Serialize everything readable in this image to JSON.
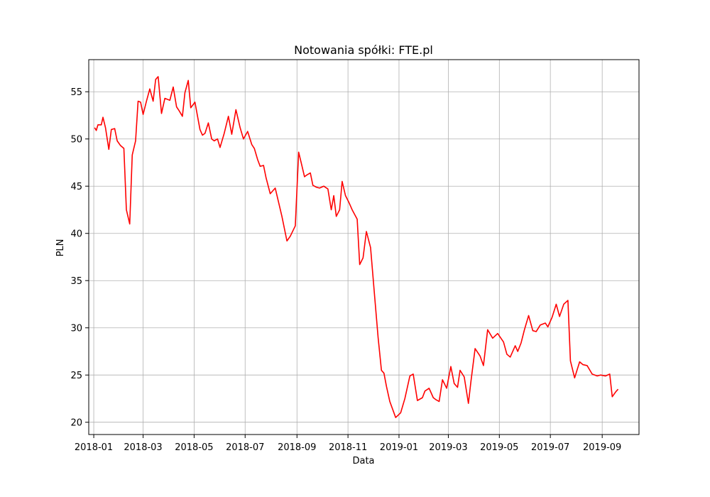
{
  "chart_data": {
    "type": "line",
    "title": "Notowania spółki: FTE.pl",
    "xlabel": "Data",
    "ylabel": "PLN",
    "grid": true,
    "line_color": "#ff0000",
    "xlim": [
      "2017-12-26",
      "2019-10-15"
    ],
    "ylim": [
      18.7,
      58.4
    ],
    "x_ticks": [
      "2018-01",
      "2018-03",
      "2018-05",
      "2018-07",
      "2018-09",
      "2018-11",
      "2019-01",
      "2019-03",
      "2019-05",
      "2019-07",
      "2019-09"
    ],
    "y_ticks": [
      20,
      25,
      30,
      35,
      40,
      45,
      50,
      55
    ],
    "series": [
      {
        "x": [
          "2018-01-02",
          "2018-01-04",
          "2018-01-06",
          "2018-01-10",
          "2018-01-12",
          "2018-01-15",
          "2018-01-19",
          "2018-01-22",
          "2018-01-26",
          "2018-01-29",
          "2018-02-02",
          "2018-02-06",
          "2018-02-09",
          "2018-02-13",
          "2018-02-16",
          "2018-02-20",
          "2018-02-23",
          "2018-02-26",
          "2018-03-01",
          "2018-03-05",
          "2018-03-09",
          "2018-03-13",
          "2018-03-16",
          "2018-03-19",
          "2018-03-23",
          "2018-03-27",
          "2018-04-02",
          "2018-04-06",
          "2018-04-10",
          "2018-04-13",
          "2018-04-17",
          "2018-04-20",
          "2018-04-24",
          "2018-04-27",
          "2018-05-02",
          "2018-05-08",
          "2018-05-11",
          "2018-05-14",
          "2018-05-18",
          "2018-05-22",
          "2018-05-25",
          "2018-05-29",
          "2018-06-01",
          "2018-06-06",
          "2018-06-11",
          "2018-06-15",
          "2018-06-20",
          "2018-06-25",
          "2018-06-29",
          "2018-07-04",
          "2018-07-09",
          "2018-07-12",
          "2018-07-16",
          "2018-07-19",
          "2018-07-23",
          "2018-07-26",
          "2018-07-31",
          "2018-08-06",
          "2018-08-10",
          "2018-08-14",
          "2018-08-20",
          "2018-08-24",
          "2018-08-30",
          "2018-09-03",
          "2018-09-06",
          "2018-09-10",
          "2018-09-13",
          "2018-09-17",
          "2018-09-20",
          "2018-09-24",
          "2018-09-28",
          "2018-10-03",
          "2018-10-08",
          "2018-10-12",
          "2018-10-15",
          "2018-10-18",
          "2018-10-22",
          "2018-10-25",
          "2018-10-29",
          "2018-11-02",
          "2018-11-06",
          "2018-11-12",
          "2018-11-15",
          "2018-11-19",
          "2018-11-23",
          "2018-11-28",
          "2018-12-03",
          "2018-12-07",
          "2018-12-11",
          "2018-12-14",
          "2018-12-17",
          "2018-12-21",
          "2018-12-28",
          "2019-01-03",
          "2019-01-08",
          "2019-01-14",
          "2019-01-18",
          "2019-01-23",
          "2019-01-29",
          "2019-02-01",
          "2019-02-06",
          "2019-02-11",
          "2019-02-14",
          "2019-02-18",
          "2019-02-22",
          "2019-02-27",
          "2019-03-04",
          "2019-03-08",
          "2019-03-12",
          "2019-03-15",
          "2019-03-20",
          "2019-03-25",
          "2019-03-28",
          "2019-04-02",
          "2019-04-08",
          "2019-04-12",
          "2019-04-17",
          "2019-04-23",
          "2019-04-29",
          "2019-05-06",
          "2019-05-10",
          "2019-05-14",
          "2019-05-20",
          "2019-05-23",
          "2019-05-27",
          "2019-05-31",
          "2019-06-05",
          "2019-06-10",
          "2019-06-14",
          "2019-06-19",
          "2019-06-25",
          "2019-06-28",
          "2019-07-03",
          "2019-07-08",
          "2019-07-12",
          "2019-07-17",
          "2019-07-22",
          "2019-07-25",
          "2019-07-30",
          "2019-08-05",
          "2019-08-09",
          "2019-08-14",
          "2019-08-20",
          "2019-08-26",
          "2019-08-30",
          "2019-09-05",
          "2019-09-10",
          "2019-09-13",
          "2019-09-17",
          "2019-09-20"
        ],
        "values": [
          51.2,
          50.9,
          51.5,
          51.5,
          52.3,
          51.2,
          48.9,
          51.0,
          51.1,
          49.8,
          49.3,
          49.0,
          42.5,
          41.0,
          48.3,
          49.8,
          54.0,
          53.9,
          52.6,
          54.0,
          55.3,
          54.0,
          56.3,
          56.6,
          52.7,
          54.3,
          54.1,
          55.5,
          53.4,
          53.0,
          52.4,
          54.9,
          56.2,
          53.3,
          53.9,
          51.0,
          50.4,
          50.6,
          51.7,
          50.0,
          49.8,
          50.0,
          49.1,
          50.6,
          52.4,
          50.5,
          53.1,
          51.2,
          50.0,
          50.8,
          49.4,
          49.0,
          47.8,
          47.1,
          47.2,
          45.9,
          44.2,
          44.8,
          43.3,
          41.8,
          39.2,
          39.7,
          40.8,
          48.6,
          47.5,
          46.0,
          46.2,
          46.4,
          45.1,
          44.9,
          44.8,
          45.0,
          44.7,
          42.5,
          44.0,
          41.8,
          42.5,
          45.5,
          44.0,
          43.3,
          42.5,
          41.5,
          36.7,
          37.4,
          40.2,
          38.5,
          33.2,
          29.0,
          25.5,
          25.2,
          23.8,
          22.2,
          20.5,
          21.0,
          22.5,
          24.9,
          25.1,
          22.3,
          22.6,
          23.3,
          23.6,
          22.6,
          22.4,
          22.2,
          24.5,
          23.6,
          25.9,
          24.1,
          23.7,
          25.5,
          24.8,
          22.0,
          24.3,
          27.8,
          27.0,
          26.0,
          29.8,
          28.9,
          29.4,
          28.5,
          27.2,
          26.9,
          28.1,
          27.5,
          28.4,
          29.8,
          31.3,
          29.7,
          29.6,
          30.3,
          30.5,
          30.1,
          31.1,
          32.5,
          31.2,
          32.5,
          32.9,
          26.5,
          24.7,
          26.4,
          26.1,
          26.0,
          25.1,
          24.9,
          25.0,
          24.9,
          25.1,
          22.7,
          23.2,
          23.5
        ]
      }
    ]
  }
}
